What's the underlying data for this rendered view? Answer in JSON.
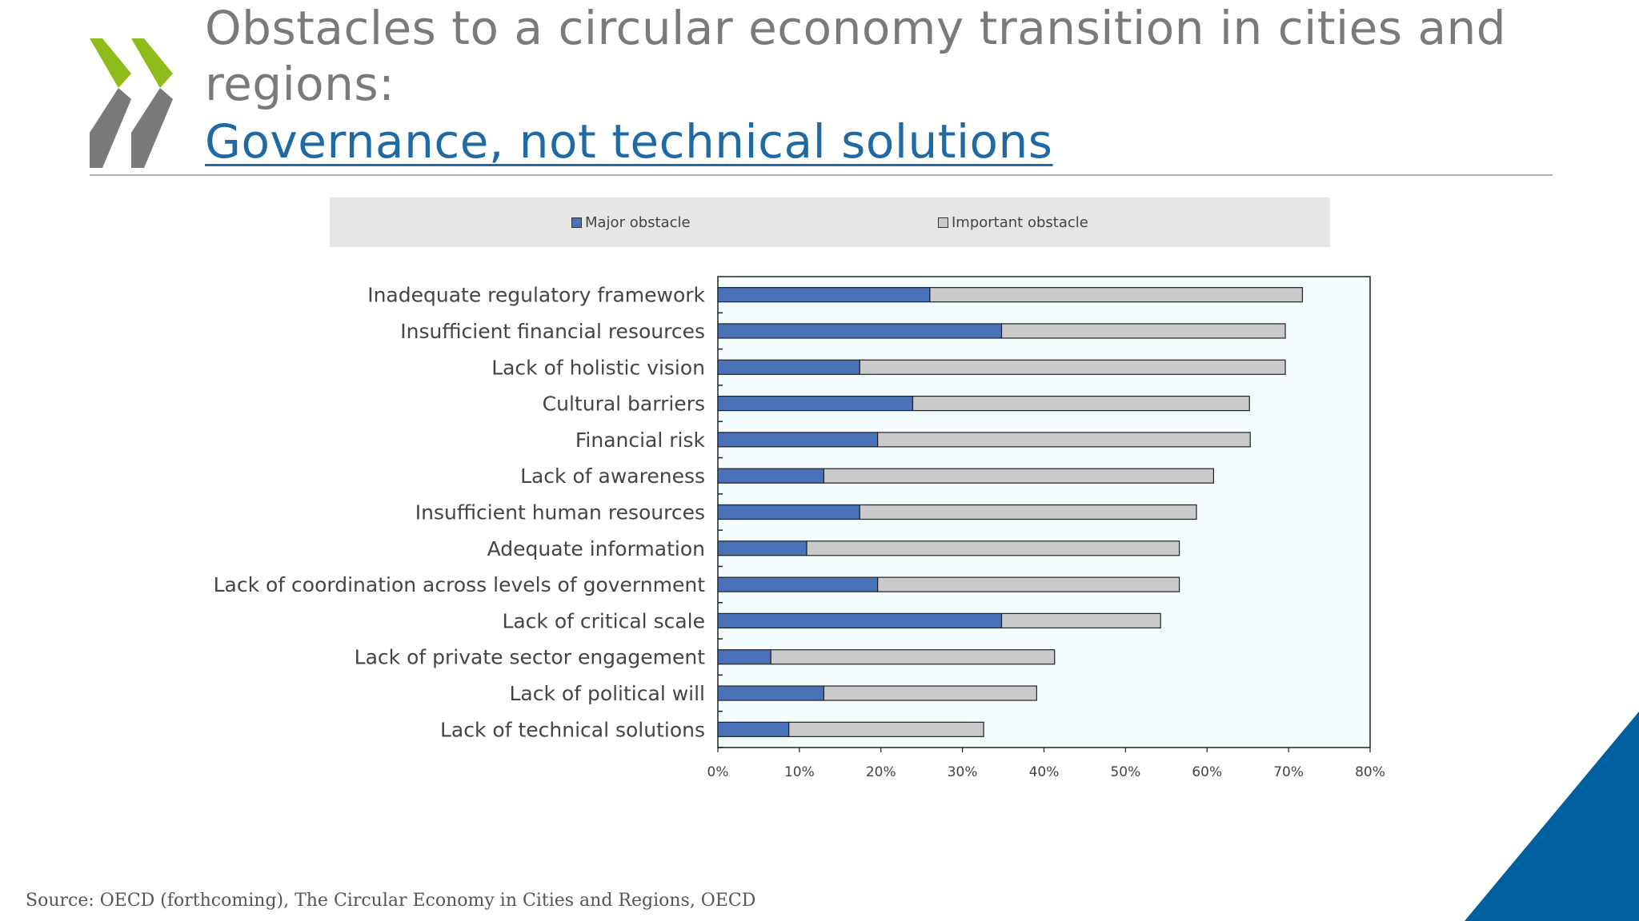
{
  "title": {
    "line1": "Obstacles to a circular economy transition in cities and",
    "line2": "regions:",
    "line3": "Governance, not technical solutions"
  },
  "source": "Source: OECD (forthcoming), The Circular Economy in Cities and Regions, OECD",
  "colors": {
    "major": "#4a72b8",
    "important": "#cacaca",
    "logo_green": "#8dbb1a",
    "logo_gray": "#7a7a7a",
    "accent_blue": "#005f9e",
    "plot_bg": "#f4fcfd"
  },
  "chart_data": {
    "type": "bar",
    "orientation": "horizontal",
    "stacked": true,
    "title": "",
    "xlabel": "",
    "ylabel": "",
    "xlim": [
      0,
      80
    ],
    "x_ticks": [
      "0%",
      "10%",
      "20%",
      "30%",
      "40%",
      "50%",
      "60%",
      "70%",
      "80%"
    ],
    "legend_position": "top",
    "categories": [
      "Inadequate regulatory framework",
      "Insufficient financial resources",
      "Lack of holistic vision",
      "Cultural barriers",
      "Financial risk",
      "Lack of awareness",
      "Insufficient human resources",
      "Adequate information",
      "Lack of coordination across levels of government",
      "Lack of critical scale",
      "Lack of private sector engagement",
      "Lack of political will",
      "Lack of technical solutions"
    ],
    "series": [
      {
        "name": "Major obstacle",
        "values": [
          26,
          34.8,
          17.4,
          23.9,
          19.6,
          13,
          17.4,
          10.9,
          19.6,
          34.8,
          6.5,
          13,
          8.7
        ]
      },
      {
        "name": "Important obstacle",
        "values": [
          45.7,
          34.8,
          52.2,
          41.3,
          45.7,
          47.8,
          41.3,
          45.7,
          37,
          19.5,
          34.8,
          26.1,
          23.9
        ]
      }
    ]
  }
}
